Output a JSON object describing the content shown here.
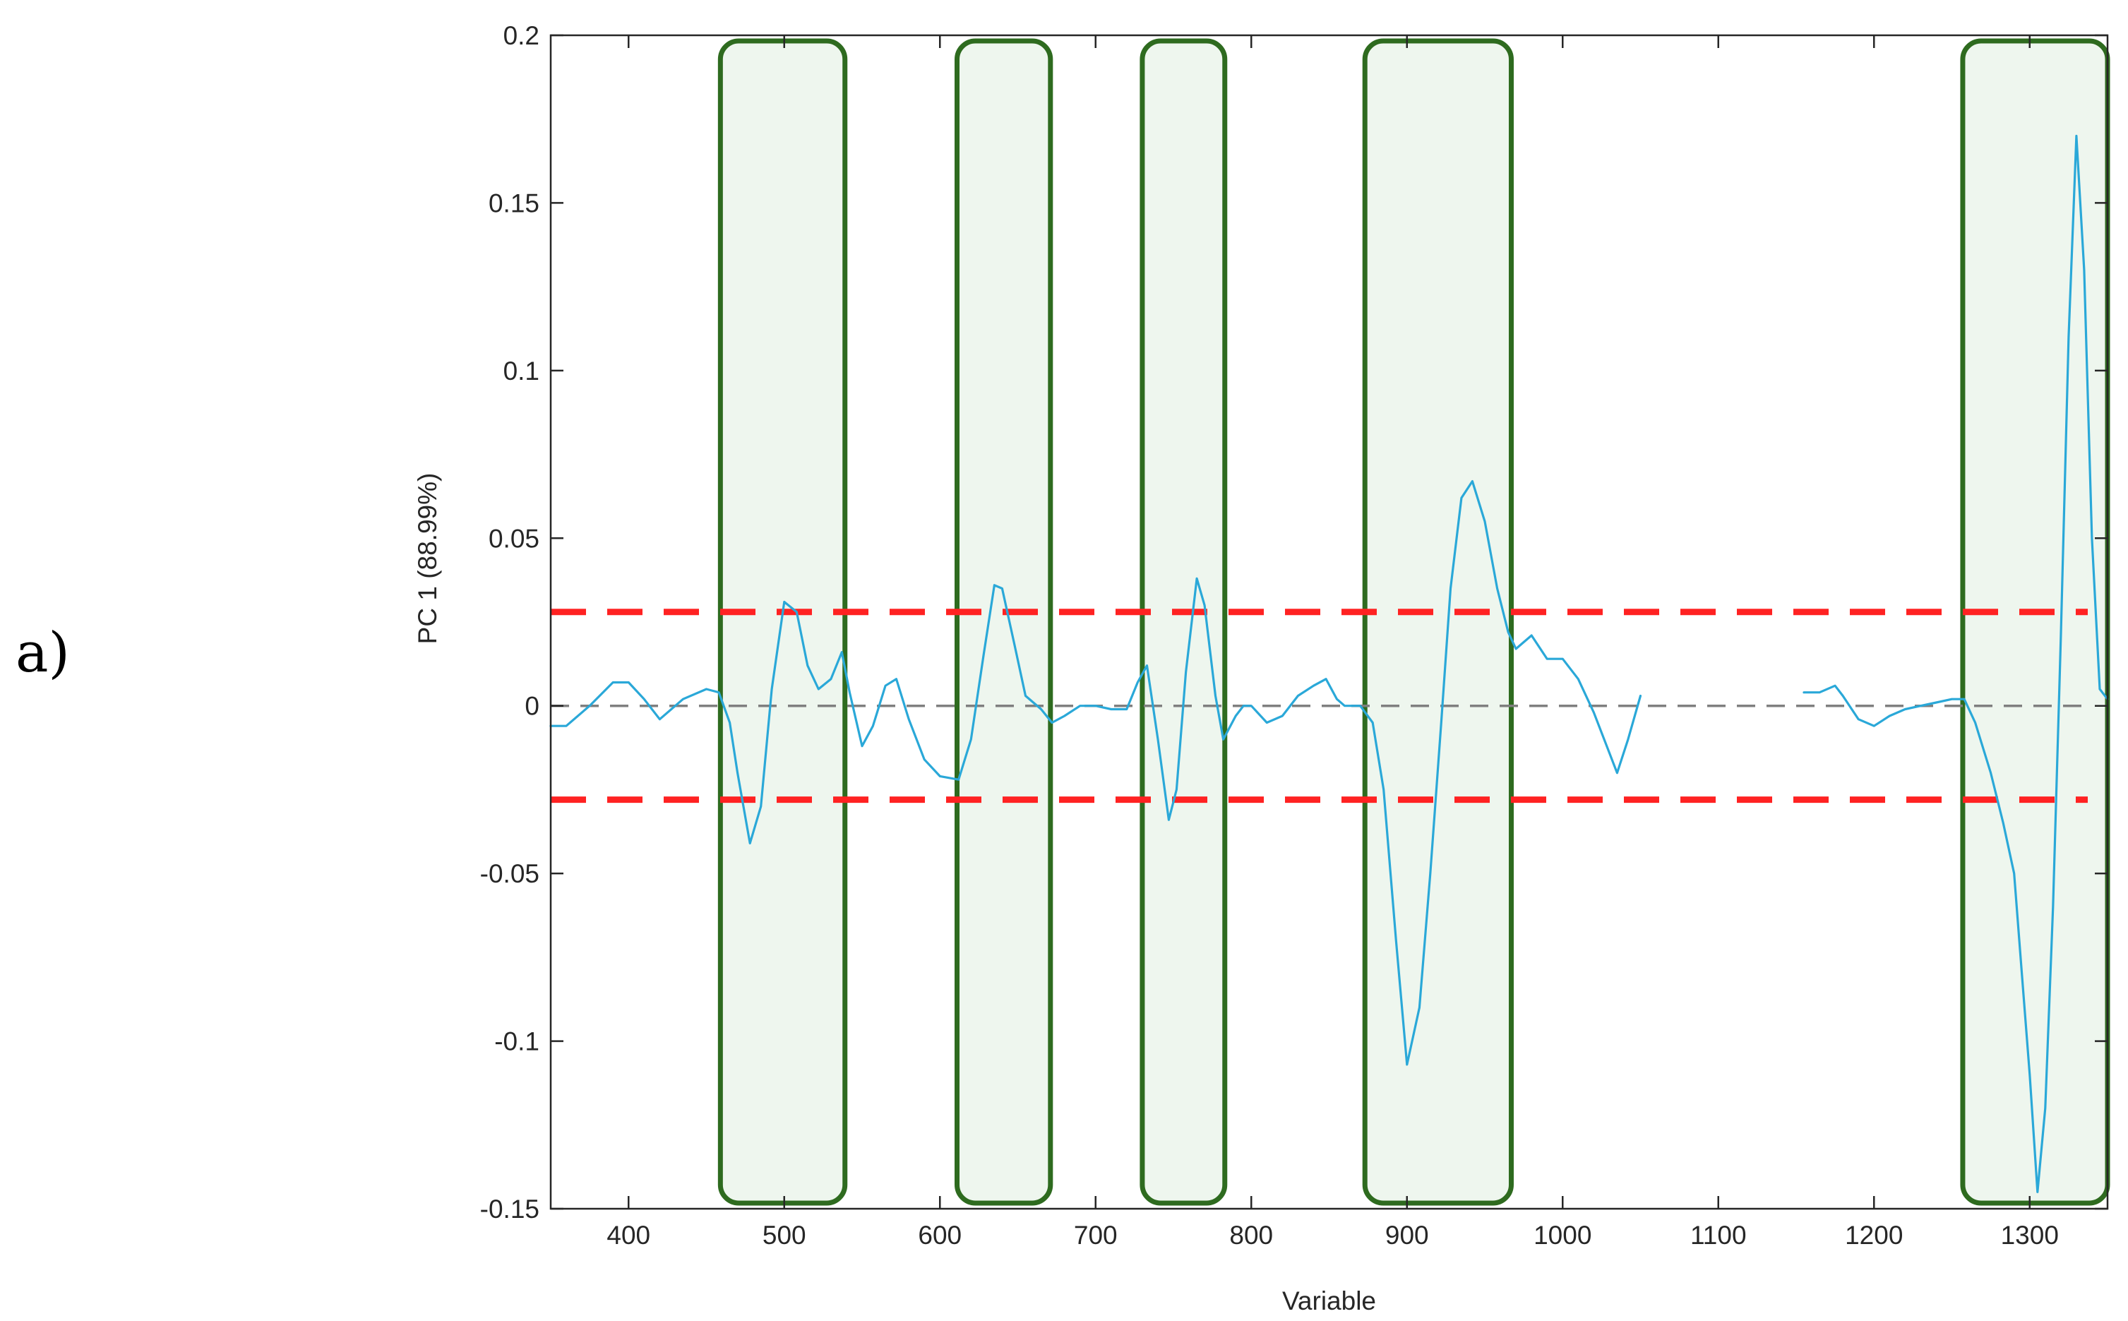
{
  "panel_label": "a)",
  "chart_data": {
    "type": "line",
    "title": "",
    "xlabel": "Variable",
    "ylabel": "PC 1 (88.99%)",
    "xlim": [
      350,
      1350
    ],
    "ylim": [
      -0.15,
      0.2
    ],
    "xticks": [
      400,
      500,
      600,
      700,
      800,
      900,
      1000,
      1100,
      1200,
      1300
    ],
    "yticks": [
      -0.15,
      -0.1,
      -0.05,
      0,
      0.05,
      0.1,
      0.15,
      0.2
    ],
    "ytick_labels": [
      "-0.15",
      "-0.1",
      "-0.05",
      "0",
      "0.05",
      "0.1",
      "0.15",
      "0.2"
    ],
    "grid": false,
    "series": [
      {
        "color": "#2aa8d8",
        "segments": [
          [
            [
              350,
              -0.006
            ],
            [
              360,
              -0.006
            ],
            [
              375,
              0.0
            ],
            [
              390,
              0.007
            ],
            [
              400,
              0.007
            ],
            [
              410,
              0.002
            ],
            [
              420,
              -0.004
            ],
            [
              435,
              0.002
            ],
            [
              450,
              0.005
            ],
            [
              458,
              0.004
            ],
            [
              465,
              -0.005
            ],
            [
              470,
              -0.02
            ],
            [
              478,
              -0.041
            ],
            [
              485,
              -0.03
            ],
            [
              492,
              0.005
            ],
            [
              500,
              0.031
            ],
            [
              508,
              0.028
            ],
            [
              515,
              0.012
            ],
            [
              522,
              0.005
            ],
            [
              530,
              0.008
            ],
            [
              537,
              0.016
            ],
            [
              542,
              0.004
            ],
            [
              550,
              -0.012
            ],
            [
              557,
              -0.006
            ],
            [
              565,
              0.006
            ],
            [
              572,
              0.008
            ],
            [
              580,
              -0.004
            ],
            [
              590,
              -0.016
            ],
            [
              600,
              -0.021
            ],
            [
              612,
              -0.022
            ],
            [
              620,
              -0.01
            ],
            [
              628,
              0.015
            ],
            [
              635,
              0.036
            ],
            [
              640,
              0.035
            ],
            [
              648,
              0.018
            ],
            [
              655,
              0.003
            ],
            [
              665,
              -0.001
            ],
            [
              672,
              -0.005
            ],
            [
              680,
              -0.003
            ],
            [
              690,
              0.0
            ],
            [
              700,
              0.0
            ],
            [
              710,
              -0.001
            ],
            [
              720,
              -0.001
            ],
            [
              727,
              0.007
            ],
            [
              733,
              0.012
            ],
            [
              740,
              -0.01
            ],
            [
              747,
              -0.034
            ],
            [
              752,
              -0.025
            ],
            [
              758,
              0.01
            ],
            [
              765,
              0.038
            ],
            [
              770,
              0.03
            ],
            [
              777,
              0.003
            ],
            [
              782,
              -0.01
            ],
            [
              790,
              -0.003
            ],
            [
              795,
              0.0
            ],
            [
              800,
              0.0
            ],
            [
              810,
              -0.005
            ],
            [
              820,
              -0.003
            ],
            [
              830,
              0.003
            ],
            [
              840,
              0.006
            ],
            [
              848,
              0.008
            ],
            [
              855,
              0.002
            ],
            [
              860,
              0.0
            ],
            [
              870,
              0.0
            ],
            [
              878,
              -0.005
            ],
            [
              885,
              -0.025
            ],
            [
              893,
              -0.07
            ],
            [
              900,
              -0.107
            ],
            [
              908,
              -0.09
            ],
            [
              915,
              -0.05
            ],
            [
              922,
              -0.005
            ],
            [
              928,
              0.035
            ],
            [
              935,
              0.062
            ],
            [
              942,
              0.067
            ],
            [
              950,
              0.055
            ],
            [
              958,
              0.035
            ],
            [
              965,
              0.022
            ],
            [
              970,
              0.017
            ],
            [
              975,
              0.019
            ],
            [
              980,
              0.021
            ],
            [
              990,
              0.014
            ],
            [
              1000,
              0.014
            ],
            [
              1010,
              0.008
            ],
            [
              1020,
              -0.002
            ],
            [
              1030,
              -0.014
            ],
            [
              1035,
              -0.02
            ],
            [
              1042,
              -0.01
            ],
            [
              1050,
              0.003
            ]
          ],
          [
            [
              1155,
              0.004
            ],
            [
              1165,
              0.004
            ],
            [
              1175,
              0.006
            ],
            [
              1180,
              0.003
            ],
            [
              1190,
              -0.004
            ],
            [
              1200,
              -0.006
            ],
            [
              1210,
              -0.003
            ],
            [
              1220,
              -0.001
            ],
            [
              1230,
              0.0
            ],
            [
              1240,
              0.001
            ],
            [
              1250,
              0.002
            ],
            [
              1258,
              0.002
            ],
            [
              1265,
              -0.005
            ],
            [
              1275,
              -0.02
            ],
            [
              1283,
              -0.035
            ],
            [
              1290,
              -0.05
            ],
            [
              1295,
              -0.08
            ],
            [
              1300,
              -0.11
            ],
            [
              1305,
              -0.145
            ],
            [
              1310,
              -0.12
            ],
            [
              1315,
              -0.06
            ],
            [
              1320,
              0.02
            ],
            [
              1325,
              0.11
            ],
            [
              1330,
              0.17
            ],
            [
              1335,
              0.13
            ],
            [
              1340,
              0.05
            ],
            [
              1345,
              0.005
            ],
            [
              1350,
              0.002
            ]
          ]
        ]
      }
    ],
    "reference_lines": [
      {
        "y": 0,
        "color": "#7f7f7f",
        "style": "dashed"
      },
      {
        "y": 0.028,
        "color": "#ff2222",
        "style": "dashed"
      },
      {
        "y": -0.028,
        "color": "#ff2222",
        "style": "dashed"
      }
    ],
    "highlight_regions": [
      {
        "x": [
          459,
          539
        ],
        "color": "#2e6b1f",
        "fill": "#eef6ee"
      },
      {
        "x": [
          611,
          671
        ],
        "color": "#2e6b1f",
        "fill": "#eef6ee"
      },
      {
        "x": [
          730,
          783
        ],
        "color": "#2e6b1f",
        "fill": "#eef6ee"
      },
      {
        "x": [
          873,
          967
        ],
        "color": "#2e6b1f",
        "fill": "#eef6ee"
      },
      {
        "x": [
          1257,
          1350
        ],
        "color": "#2e6b1f",
        "fill": "#eef6ee"
      }
    ]
  }
}
